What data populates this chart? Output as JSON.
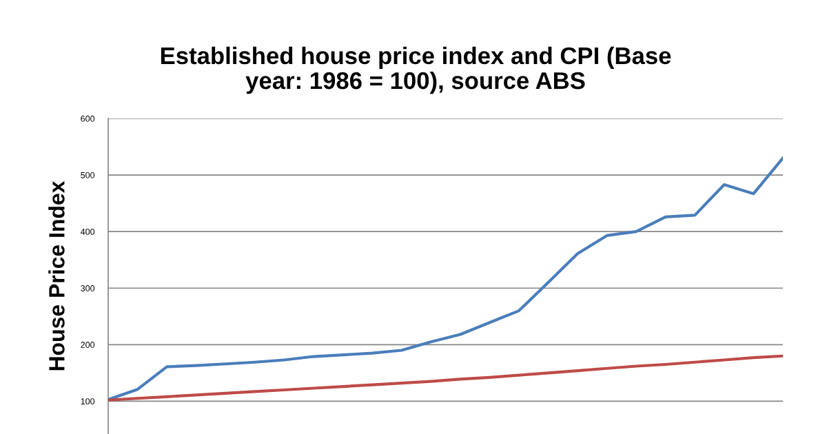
{
  "chart_data": {
    "type": "line",
    "title": "Established house price index and CPI (Base\nyear: 1986 = 100), source ABS",
    "ylabel": "House Price Index",
    "categories": [
      null,
      null,
      null,
      null,
      null,
      null,
      null,
      null,
      null,
      null,
      null,
      null,
      null,
      null,
      null,
      null,
      null,
      null,
      null,
      null,
      null,
      null,
      null,
      null
    ],
    "series": [
      {
        "color": "#4a7ebb",
        "values": [
          103,
          121,
          161,
          163,
          166,
          169,
          173,
          179,
          182,
          185,
          190,
          205,
          218,
          239,
          260,
          310,
          361,
          393,
          400,
          426,
          429,
          483,
          467,
          530
        ]
      },
      {
        "color": "#be4b48",
        "values": [
          102,
          105,
          108,
          111,
          114,
          117,
          120,
          123,
          126,
          129,
          132,
          135,
          139,
          142,
          146,
          150,
          154,
          158,
          162,
          165,
          169,
          173,
          177,
          180
        ]
      }
    ],
    "ylim": [
      42,
      600
    ],
    "yticks": [
      100,
      200,
      300,
      400,
      500,
      600
    ],
    "grid": "y",
    "legend": false,
    "marker": "none",
    "line_style": "solid"
  }
}
